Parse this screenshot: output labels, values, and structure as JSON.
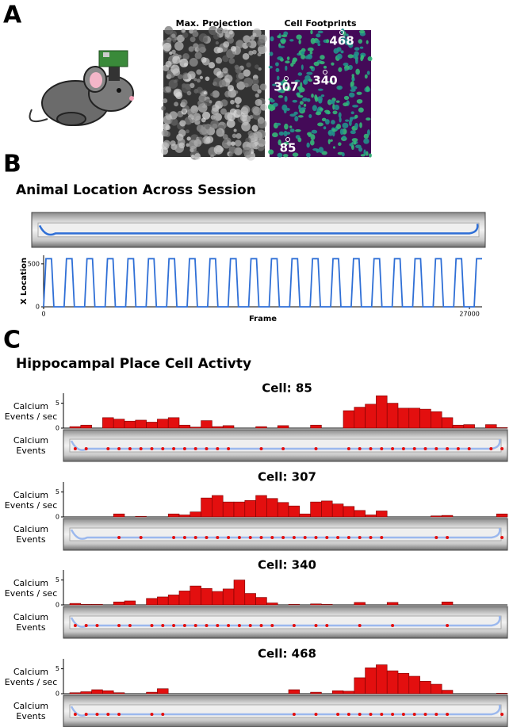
{
  "panels": [
    "A",
    "B",
    "C"
  ],
  "figure_a": {
    "titles": [
      "Max. Projection",
      "Cell Footprints"
    ],
    "cell_labels": [
      "468",
      "307",
      "340",
      "85"
    ]
  },
  "section_b_title": "Animal Location Across Session",
  "section_c_title": "Hippocampal Place Cell Activty",
  "chart_data": [
    {
      "type": "line",
      "xlabel": "Frame",
      "ylabel": "X Location",
      "x": [
        0,
        150,
        500,
        650,
        1300,
        1450,
        1800,
        1950,
        2600,
        2750,
        3100,
        3250,
        3900,
        4050,
        4400,
        4550,
        5200,
        5350,
        5700,
        5850,
        6500,
        6650,
        7000,
        7150,
        7800,
        7950,
        8300,
        8450,
        9100,
        9250,
        9600,
        9750,
        10400,
        10550,
        10900,
        11050,
        11700,
        11850,
        12200,
        12350,
        13000,
        13150,
        13500,
        13650,
        14300,
        14450,
        14800,
        14950,
        15600,
        15750,
        16100,
        16250,
        16900,
        17050,
        17400,
        17550,
        18200,
        18350,
        18700,
        18850,
        19500,
        19650,
        20000,
        20150,
        20800,
        20950,
        21300,
        21450,
        22100,
        22250,
        22600,
        22750,
        23400,
        23550,
        23900,
        24050,
        24700,
        24850,
        25200,
        25350,
        26000,
        26150,
        26500,
        26650,
        27300,
        27450,
        27800
      ],
      "values": [
        0,
        560,
        560,
        0,
        0,
        560,
        560,
        0,
        0,
        560,
        560,
        0,
        0,
        560,
        560,
        0,
        0,
        560,
        560,
        0,
        0,
        560,
        560,
        0,
        0,
        560,
        560,
        0,
        0,
        560,
        560,
        0,
        0,
        560,
        560,
        0,
        0,
        560,
        560,
        0,
        0,
        560,
        560,
        0,
        0,
        560,
        560,
        0,
        0,
        560,
        560,
        0,
        0,
        560,
        560,
        0,
        0,
        560,
        560,
        0,
        0,
        560,
        560,
        0,
        0,
        560,
        560,
        0,
        0,
        560,
        560,
        0,
        0,
        560,
        560,
        0,
        0,
        560,
        560,
        0,
        0,
        560,
        560,
        0,
        0,
        560,
        560
      ],
      "color": "#2f6fd6",
      "xlim": [
        0,
        27800
      ],
      "ylim": [
        0,
        600
      ],
      "xticks": [
        0,
        27000
      ],
      "yticks": [
        0,
        500
      ]
    },
    {
      "type": "bar",
      "title": "Cell: 85",
      "ylabel": "Calcium Events / sec",
      "track_label": "Calcium Events",
      "values": [
        0.3,
        0.6,
        0,
        2.1,
        1.8,
        1.4,
        1.6,
        1.2,
        1.8,
        2.1,
        0.6,
        0.2,
        1.5,
        0.3,
        0.5,
        0,
        0,
        0.3,
        0,
        0.5,
        0,
        0,
        0.6,
        0,
        0,
        3.5,
        4.2,
        4.8,
        6.5,
        5.0,
        4.0,
        4.0,
        3.8,
        3.3,
        2.1,
        0.6,
        0.7,
        0,
        0.7,
        0.1
      ],
      "color": "#e30f0f",
      "ylim": [
        0,
        7
      ],
      "yticks": [
        0,
        5
      ]
    },
    {
      "type": "bar",
      "title": "Cell: 307",
      "ylabel": "Calcium Events / sec",
      "track_label": "Calcium Events",
      "values": [
        0,
        0,
        0,
        0,
        0.6,
        0,
        0.1,
        0,
        0,
        0.6,
        0.4,
        1.0,
        3.8,
        4.3,
        3.0,
        3.0,
        3.3,
        4.3,
        3.7,
        2.9,
        2.2,
        0.6,
        3.0,
        3.2,
        2.6,
        2.1,
        1.3,
        0.4,
        1.2,
        0,
        0,
        0,
        0,
        0.2,
        0.3,
        0,
        0,
        0,
        0,
        0.6
      ],
      "color": "#e30f0f",
      "ylim": [
        0,
        7
      ],
      "yticks": [
        0,
        5
      ]
    },
    {
      "type": "bar",
      "title": "Cell: 340",
      "ylabel": "Calcium Events / sec",
      "track_label": "Calcium Events",
      "values": [
        0.3,
        0.1,
        0.1,
        0,
        0.6,
        0.8,
        0,
        1.3,
        1.6,
        2.0,
        2.8,
        3.8,
        3.3,
        2.7,
        3.2,
        5.0,
        2.3,
        1.5,
        0.4,
        0,
        0.1,
        0,
        0.2,
        0.1,
        0,
        0,
        0.5,
        0,
        0,
        0.5,
        0,
        0,
        0,
        0,
        0.6,
        0,
        0,
        0,
        0,
        0
      ],
      "color": "#e30f0f",
      "ylim": [
        0,
        7
      ],
      "yticks": [
        0,
        5
      ]
    },
    {
      "type": "bar",
      "title": "Cell: 468",
      "ylabel": "Calcium Events / sec",
      "track_label": "Calcium Events",
      "values": [
        0.2,
        0.4,
        0.8,
        0.6,
        0.2,
        0,
        0,
        0.3,
        1.0,
        0,
        0,
        0,
        0,
        0,
        0,
        0,
        0,
        0,
        0,
        0,
        0.8,
        0,
        0.3,
        0,
        0.6,
        0.5,
        3.2,
        5.2,
        5.8,
        4.6,
        4.1,
        3.5,
        2.5,
        1.9,
        0.7,
        0,
        0,
        0,
        0,
        0.1
      ],
      "color": "#e30f0f",
      "ylim": [
        0,
        7
      ],
      "yticks": [
        0,
        5
      ]
    }
  ]
}
